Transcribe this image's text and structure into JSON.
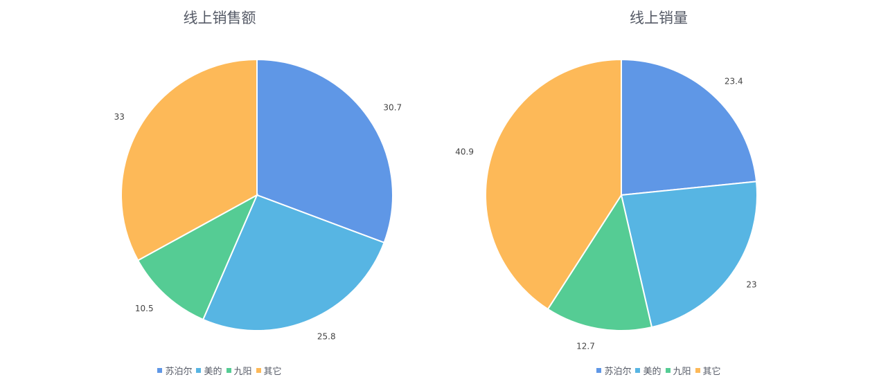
{
  "chart_data": [
    {
      "type": "pie",
      "title": "线上销售额",
      "categories": [
        "苏泊尔",
        "美的",
        "九阳",
        "其它"
      ],
      "values": [
        30.7,
        25.8,
        10.5,
        33
      ],
      "colors": [
        "#5f97e6",
        "#57b5e3",
        "#55cc94",
        "#fdb958"
      ],
      "legend": "bottom"
    },
    {
      "type": "pie",
      "title": "线上销量",
      "categories": [
        "苏泊尔",
        "美的",
        "九阳",
        "其它"
      ],
      "values": [
        23.4,
        23,
        12.7,
        40.9
      ],
      "colors": [
        "#5f97e6",
        "#57b5e3",
        "#55cc94",
        "#fdb958"
      ],
      "legend": "bottom"
    }
  ]
}
